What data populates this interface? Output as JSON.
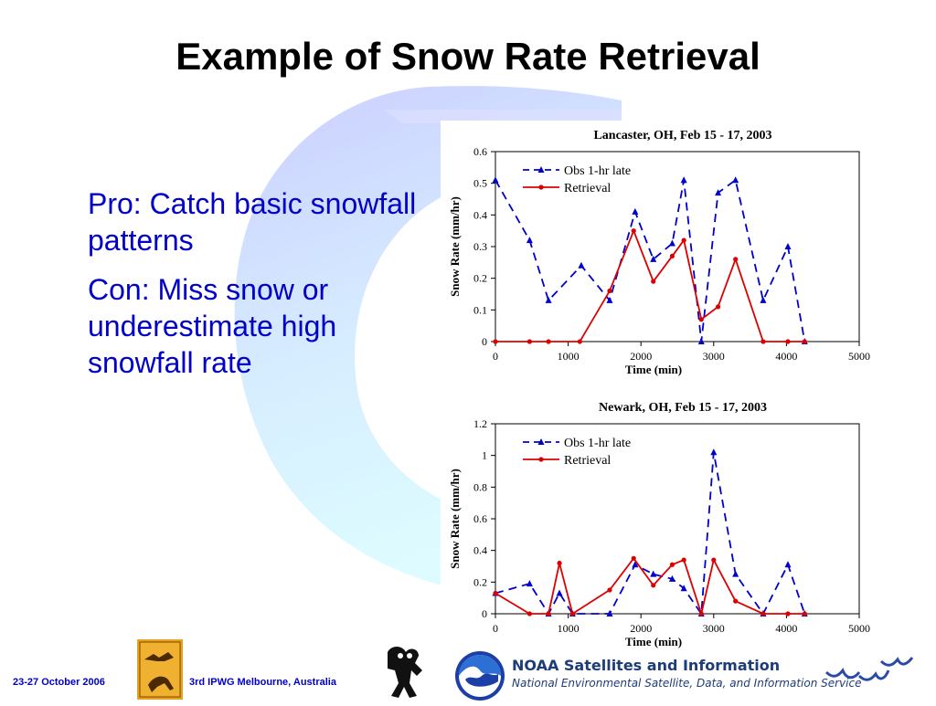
{
  "slide": {
    "title": "Example of Snow Rate Retrieval",
    "bullets": [
      "Pro: Catch basic snowfall patterns",
      "Con: Miss snow or underestimate high snowfall rate"
    ]
  },
  "footer": {
    "date": "23-27 October 2006",
    "event": "3rd IPWG  Melbourne, Australia",
    "noaa_title": "NOAA Satellites and Information",
    "noaa_subtitle": "National Environmental Satellite, Data, and Information Service"
  },
  "colors": {
    "text_accent": "#0000c8",
    "obs": "#0000cc",
    "retrieval": "#dd0000"
  },
  "chart_data": [
    {
      "type": "line",
      "title": "Lancaster, OH, Feb 15 - 17, 2003",
      "xlabel": "Time (min)",
      "ylabel": "Snow Rate (mm/hr)",
      "xlim": [
        0,
        5000
      ],
      "ylim": [
        0,
        0.6
      ],
      "xticks": [
        "0",
        "1000",
        "2000",
        "3000",
        "4000",
        "5000"
      ],
      "yticks": [
        "0",
        "0.1",
        "0.2",
        "0.3",
        "0.4",
        "0.5",
        "0.6"
      ],
      "legend_position": "top-left",
      "grid": false,
      "series": [
        {
          "name": "Obs 1-hr late",
          "style": "dashed-triangle",
          "color": "#0000cc",
          "x": [
            0,
            470,
            730,
            1180,
            1570,
            1920,
            2170,
            2430,
            2590,
            2830,
            3060,
            3300,
            3680,
            4020,
            4250
          ],
          "y": [
            0.51,
            0.32,
            0.13,
            0.24,
            0.13,
            0.41,
            0.26,
            0.31,
            0.51,
            0.0,
            0.47,
            0.51,
            0.13,
            0.3,
            0.0
          ]
        },
        {
          "name": "Retrieval",
          "style": "solid-circle",
          "color": "#dd0000",
          "x": [
            0,
            470,
            730,
            1160,
            1570,
            1900,
            2170,
            2430,
            2590,
            2830,
            3060,
            3300,
            3680,
            4020,
            4250
          ],
          "y": [
            0.0,
            0.0,
            0.0,
            0.0,
            0.16,
            0.35,
            0.19,
            0.27,
            0.32,
            0.07,
            0.11,
            0.26,
            0.0,
            0.0,
            0.0
          ]
        }
      ]
    },
    {
      "type": "line",
      "title": "Newark, OH, Feb 15 - 17, 2003",
      "xlabel": "Time (min)",
      "ylabel": "Snow Rate (mm/hr)",
      "xlim": [
        0,
        5000
      ],
      "ylim": [
        0,
        1.2
      ],
      "xticks": [
        "0",
        "1000",
        "2000",
        "3000",
        "4000",
        "5000"
      ],
      "yticks": [
        "0",
        "0.2",
        "0.4",
        "0.6",
        "0.8",
        "1",
        "1.2"
      ],
      "legend_position": "top-left",
      "grid": false,
      "series": [
        {
          "name": "Obs 1-hr late",
          "style": "dashed-triangle",
          "color": "#0000cc",
          "x": [
            0,
            470,
            730,
            880,
            1060,
            1570,
            1920,
            2170,
            2430,
            2590,
            2830,
            3000,
            3300,
            3680,
            4020,
            4250
          ],
          "y": [
            0.13,
            0.19,
            0.0,
            0.13,
            0.0,
            0.0,
            0.31,
            0.25,
            0.22,
            0.16,
            0.0,
            1.02,
            0.25,
            0.0,
            0.31,
            0.0
          ]
        },
        {
          "name": "Retrieval",
          "style": "solid-circle",
          "color": "#dd0000",
          "x": [
            0,
            470,
            730,
            880,
            1060,
            1570,
            1900,
            2170,
            2430,
            2590,
            2830,
            3000,
            3300,
            3680,
            4020,
            4250
          ],
          "y": [
            0.13,
            0.0,
            0.0,
            0.32,
            0.0,
            0.15,
            0.35,
            0.18,
            0.31,
            0.34,
            0.0,
            0.34,
            0.08,
            0.0,
            0.0,
            0.0
          ]
        }
      ]
    }
  ]
}
